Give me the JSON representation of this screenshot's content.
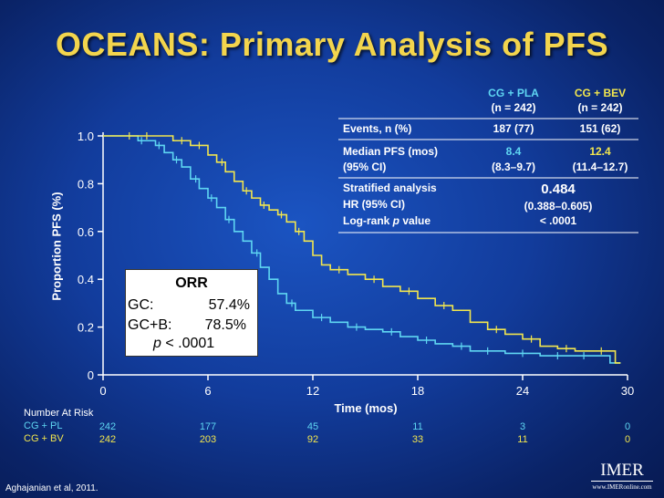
{
  "title": "OCEANS: Primary Analysis of PFS",
  "colors": {
    "title": "#f3d54d",
    "cg_pla": "#5fd6f2",
    "cg_bev": "#f2e64e",
    "text": "#ffffff"
  },
  "chart_data": {
    "type": "line",
    "subtype": "kaplan-meier",
    "xlabel": "Time (mos)",
    "ylabel": "Proportion PFS (%)",
    "xlim": [
      0,
      30
    ],
    "ylim": [
      0,
      1
    ],
    "x_ticks": [
      "0",
      "6",
      "12",
      "18",
      "24",
      "30"
    ],
    "x_tick_values": [
      0,
      6,
      12,
      18,
      24,
      30
    ],
    "y_ticks": [
      "0",
      "0.2",
      "0.4",
      "0.6",
      "0.8",
      "1.0"
    ],
    "y_tick_values": [
      0,
      0.2,
      0.4,
      0.6,
      0.8,
      1.0
    ],
    "grid": false,
    "series": [
      {
        "name": "CG + PLA",
        "color": "#5fd6f2",
        "steps": [
          [
            0,
            1
          ],
          [
            1.5,
            1
          ],
          [
            2,
            0.98
          ],
          [
            3,
            0.96
          ],
          [
            3.5,
            0.93
          ],
          [
            4,
            0.9
          ],
          [
            4.5,
            0.87
          ],
          [
            5,
            0.82
          ],
          [
            5.5,
            0.78
          ],
          [
            6,
            0.74
          ],
          [
            6.5,
            0.7
          ],
          [
            7,
            0.65
          ],
          [
            7.5,
            0.6
          ],
          [
            8,
            0.56
          ],
          [
            8.5,
            0.51
          ],
          [
            9,
            0.45
          ],
          [
            9.5,
            0.4
          ],
          [
            10,
            0.34
          ],
          [
            10.5,
            0.3
          ],
          [
            11,
            0.27
          ],
          [
            12,
            0.24
          ],
          [
            13,
            0.22
          ],
          [
            14,
            0.2
          ],
          [
            15,
            0.19
          ],
          [
            16,
            0.18
          ],
          [
            17,
            0.16
          ],
          [
            18,
            0.145
          ],
          [
            19,
            0.13
          ],
          [
            20,
            0.12
          ],
          [
            21,
            0.1
          ],
          [
            23,
            0.09
          ],
          [
            25,
            0.08
          ],
          [
            27,
            0.08
          ],
          [
            28,
            0.08
          ],
          [
            29,
            0.05
          ],
          [
            29.6,
            0.05
          ]
        ],
        "censors": [
          [
            2.2,
            0.98
          ],
          [
            3.2,
            0.96
          ],
          [
            4.2,
            0.9
          ],
          [
            5.3,
            0.82
          ],
          [
            6.2,
            0.74
          ],
          [
            7.2,
            0.65
          ],
          [
            8.8,
            0.51
          ],
          [
            10.8,
            0.3
          ],
          [
            12.5,
            0.24
          ],
          [
            14.5,
            0.2
          ],
          [
            16.5,
            0.18
          ],
          [
            18.5,
            0.145
          ],
          [
            20.5,
            0.12
          ],
          [
            22,
            0.1
          ],
          [
            24,
            0.09
          ],
          [
            26,
            0.08
          ],
          [
            27.5,
            0.08
          ]
        ]
      },
      {
        "name": "CG + BEV",
        "color": "#f2e64e",
        "steps": [
          [
            0,
            1
          ],
          [
            3,
            1
          ],
          [
            4,
            0.98
          ],
          [
            5,
            0.96
          ],
          [
            6,
            0.92
          ],
          [
            6.5,
            0.89
          ],
          [
            7,
            0.85
          ],
          [
            7.5,
            0.81
          ],
          [
            8,
            0.77
          ],
          [
            8.5,
            0.74
          ],
          [
            9,
            0.71
          ],
          [
            9.5,
            0.69
          ],
          [
            10,
            0.67
          ],
          [
            10.5,
            0.64
          ],
          [
            11,
            0.6
          ],
          [
            11.5,
            0.56
          ],
          [
            12,
            0.5
          ],
          [
            12.5,
            0.46
          ],
          [
            13,
            0.44
          ],
          [
            14,
            0.42
          ],
          [
            15,
            0.4
          ],
          [
            16,
            0.37
          ],
          [
            17,
            0.35
          ],
          [
            18,
            0.32
          ],
          [
            19,
            0.29
          ],
          [
            20,
            0.27
          ],
          [
            21,
            0.22
          ],
          [
            22,
            0.19
          ],
          [
            23,
            0.17
          ],
          [
            24,
            0.15
          ],
          [
            25,
            0.12
          ],
          [
            26,
            0.11
          ],
          [
            27,
            0.1
          ],
          [
            28,
            0.1
          ],
          [
            29.3,
            0.05
          ],
          [
            29.6,
            0.05
          ]
        ],
        "censors": [
          [
            1.5,
            1
          ],
          [
            2.5,
            1
          ],
          [
            4.5,
            0.98
          ],
          [
            5.5,
            0.96
          ],
          [
            6.8,
            0.89
          ],
          [
            8.2,
            0.77
          ],
          [
            9.2,
            0.71
          ],
          [
            10.2,
            0.67
          ],
          [
            11.2,
            0.6
          ],
          [
            13.5,
            0.44
          ],
          [
            15.5,
            0.4
          ],
          [
            17.5,
            0.35
          ],
          [
            19.5,
            0.29
          ],
          [
            22.5,
            0.19
          ],
          [
            24.5,
            0.15
          ],
          [
            26.5,
            0.11
          ],
          [
            28.5,
            0.1
          ]
        ]
      }
    ]
  },
  "stats_table": {
    "col1_header": "CG + PLA",
    "col1_n": "(n = 242)",
    "col2_header": "CG + BEV",
    "col2_n": "(n = 242)",
    "events_label": "Events, n (%)",
    "events_pla": "187 (77)",
    "events_bev": "151 (62)",
    "median_label_1": "Median PFS (mos)",
    "median_label_2": "(95% CI)",
    "median_pla": "8.4",
    "median_pla_ci": "(8.3–9.7)",
    "median_bev": "12.4",
    "median_bev_ci": "(11.4–12.7)",
    "strat_label_1": "Stratified analysis",
    "strat_label_2": "HR (95% CI)",
    "strat_label_3_pre": "Log-rank ",
    "strat_label_3_p": "p",
    "strat_label_3_post": " value",
    "hr": "0.484",
    "hr_ci": "(0.388–0.605)",
    "pval": "< .0001"
  },
  "orr": {
    "title": "ORR",
    "gc_label": "GC:",
    "gc_value": "57.4%",
    "gcb_label": "GC+B:",
    "gcb_value": "78.5%",
    "p_sym": "p",
    "p_text": " < .0001"
  },
  "number_at_risk": {
    "label": "Number At Risk",
    "rows": [
      {
        "name": "CG + PL",
        "values": [
          "242",
          "177",
          "45",
          "11",
          "3",
          "0"
        ]
      },
      {
        "name": "CG + BV",
        "values": [
          "242",
          "203",
          "92",
          "33",
          "11",
          "0"
        ]
      }
    ]
  },
  "citation": "Aghajanian et al, 2011.",
  "logo": {
    "main": "IMER",
    "sub": "www.IMERonline.com"
  }
}
